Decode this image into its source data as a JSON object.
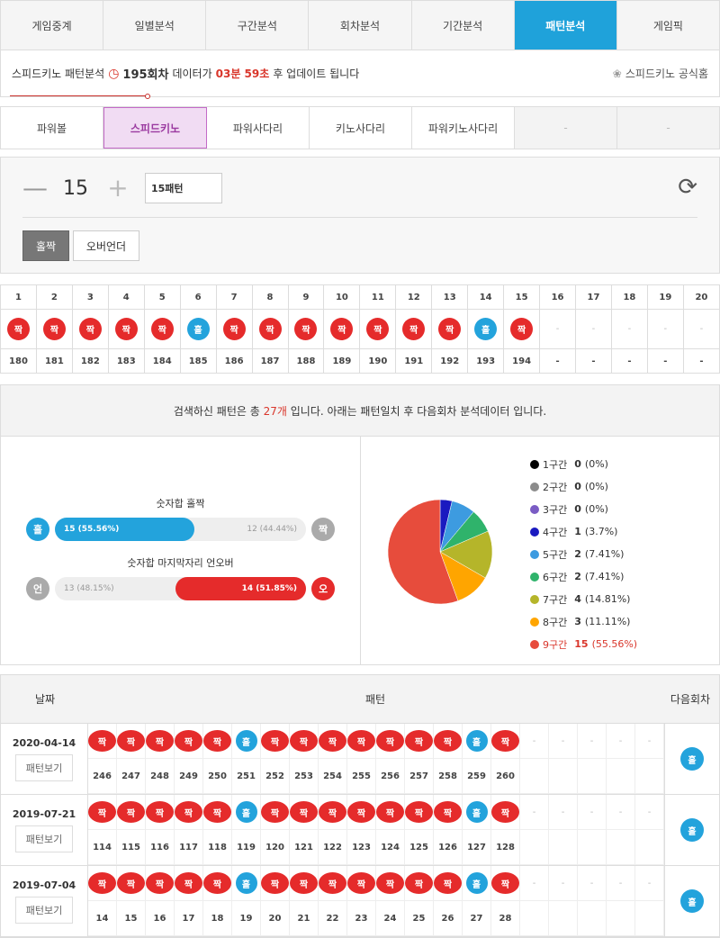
{
  "tabs": [
    "게임중계",
    "일별분석",
    "구간분석",
    "회차분석",
    "기간분석",
    "패턴분석",
    "게임픽"
  ],
  "active_tab": 5,
  "info": {
    "prefix": "스피드키노 패턴분석",
    "round": "195회차",
    "mid": "데이터가",
    "time": "03분 59초",
    "suffix": "후 업데이트 됩니다",
    "official": "스피드키노 공식홈"
  },
  "subtabs": [
    "파워볼",
    "스피드키노",
    "파워사다리",
    "키노사다리",
    "파워키노사다리",
    "-",
    "-"
  ],
  "active_subtab": 1,
  "control": {
    "minus": "—",
    "count": "15",
    "plus": "+",
    "select": "15패턴",
    "btn_oddeven": "홀짝",
    "btn_overunder": "오버언더"
  },
  "grid": {
    "cols": [
      "1",
      "2",
      "3",
      "4",
      "5",
      "6",
      "7",
      "8",
      "9",
      "10",
      "11",
      "12",
      "13",
      "14",
      "15",
      "16",
      "17",
      "18",
      "19",
      "20"
    ],
    "results": [
      "짝",
      "짝",
      "짝",
      "짝",
      "짝",
      "홀",
      "짝",
      "짝",
      "짝",
      "짝",
      "짝",
      "짝",
      "짝",
      "홀",
      "짝",
      "-",
      "-",
      "-",
      "-",
      "-"
    ],
    "rounds": [
      "180",
      "181",
      "182",
      "183",
      "184",
      "185",
      "186",
      "187",
      "188",
      "189",
      "190",
      "191",
      "192",
      "193",
      "194",
      "-",
      "-",
      "-",
      "-",
      "-"
    ]
  },
  "summary": {
    "pre": "검색하신 패턴은 총",
    "count": "27개",
    "post": "입니다. 아래는 패턴일치 후 다음회차 분석데이터 입니다."
  },
  "bars": {
    "oe_title": "숫자합 홀짝",
    "oe_left_icon": "홀",
    "oe_left": "15 (55.56%)",
    "oe_left_pct": 55.56,
    "oe_right": "12 (44.44%)",
    "oe_right_icon": "짝",
    "ou_title": "숫자합 마지막자리 언오버",
    "ou_left_icon": "언",
    "ou_left": "13 (48.15%)",
    "ou_right": "14 (51.85%)",
    "ou_right_pct": 51.85,
    "ou_right_icon": "오"
  },
  "legend": [
    {
      "label": "1구간",
      "count": "0",
      "pct": "(0%)",
      "color": "#000000",
      "value": 0
    },
    {
      "label": "2구간",
      "count": "0",
      "pct": "(0%)",
      "color": "#8c8c8c",
      "value": 0
    },
    {
      "label": "3구간",
      "count": "0",
      "pct": "(0%)",
      "color": "#7a5cc4",
      "value": 0
    },
    {
      "label": "4구간",
      "count": "1",
      "pct": "(3.7%)",
      "color": "#1a1ac0",
      "value": 3.7
    },
    {
      "label": "5구간",
      "count": "2",
      "pct": "(7.41%)",
      "color": "#3d9be0",
      "value": 7.41
    },
    {
      "label": "6구간",
      "count": "2",
      "pct": "(7.41%)",
      "color": "#2fb36b",
      "value": 7.41
    },
    {
      "label": "7구간",
      "count": "4",
      "pct": "(14.81%)",
      "color": "#b5b52a",
      "value": 14.81
    },
    {
      "label": "8구간",
      "count": "3",
      "pct": "(11.11%)",
      "color": "#ffa500",
      "value": 11.11
    },
    {
      "label": "9구간",
      "count": "15",
      "pct": "(55.56%)",
      "color": "#e74c3c",
      "value": 55.56
    }
  ],
  "history": {
    "h_date": "날짜",
    "h_pattern": "패턴",
    "h_next": "다음회차",
    "view_label": "패턴보기",
    "rows": [
      {
        "date": "2020-04-14",
        "results": [
          "짝",
          "짝",
          "짝",
          "짝",
          "짝",
          "홀",
          "짝",
          "짝",
          "짝",
          "짝",
          "짝",
          "짝",
          "짝",
          "홀",
          "짝",
          "-",
          "-",
          "-",
          "-",
          "-"
        ],
        "rounds": [
          "246",
          "247",
          "248",
          "249",
          "250",
          "251",
          "252",
          "253",
          "254",
          "255",
          "256",
          "257",
          "258",
          "259",
          "260",
          "",
          "",
          "",
          "",
          ""
        ],
        "next": "홀"
      },
      {
        "date": "2019-07-21",
        "results": [
          "짝",
          "짝",
          "짝",
          "짝",
          "짝",
          "홀",
          "짝",
          "짝",
          "짝",
          "짝",
          "짝",
          "짝",
          "짝",
          "홀",
          "짝",
          "-",
          "-",
          "-",
          "-",
          "-"
        ],
        "rounds": [
          "114",
          "115",
          "116",
          "117",
          "118",
          "119",
          "120",
          "121",
          "122",
          "123",
          "124",
          "125",
          "126",
          "127",
          "128",
          "",
          "",
          "",
          "",
          ""
        ],
        "next": "홀"
      },
      {
        "date": "2019-07-04",
        "results": [
          "짝",
          "짝",
          "짝",
          "짝",
          "짝",
          "홀",
          "짝",
          "짝",
          "짝",
          "짝",
          "짝",
          "짝",
          "짝",
          "홀",
          "짝",
          "-",
          "-",
          "-",
          "-",
          "-"
        ],
        "rounds": [
          "14",
          "15",
          "16",
          "17",
          "18",
          "19",
          "20",
          "21",
          "22",
          "23",
          "24",
          "25",
          "26",
          "27",
          "28",
          "",
          "",
          "",
          "",
          ""
        ],
        "next": "홀"
      }
    ]
  }
}
